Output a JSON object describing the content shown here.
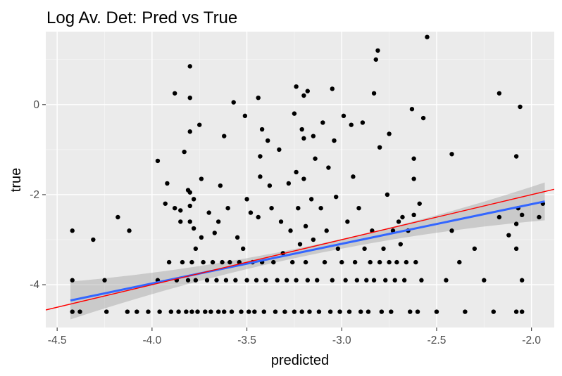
{
  "chart_data": {
    "type": "scatter",
    "title": "Log Av. Det: Pred vs True",
    "xlabel": "predicted",
    "ylabel": "true",
    "xlim": [
      -4.56,
      -1.88
    ],
    "ylim": [
      -4.95,
      1.62
    ],
    "xticks": [
      -4.5,
      -4.0,
      -3.5,
      -3.0,
      -2.5,
      -2.0
    ],
    "xtick_labels": [
      "-4.5",
      "-4.0",
      "-3.5",
      "-3.0",
      "-2.5",
      "-2.0"
    ],
    "yticks": [
      -4,
      -2,
      0
    ],
    "ytick_labels": [
      "-4",
      "-2",
      "0"
    ],
    "grid": true,
    "background": "#ebebeb",
    "point_color": "#000000",
    "identity_line": {
      "slope": 1,
      "intercept": 0,
      "color": "#ff0000"
    },
    "regression_line": {
      "x": [
        -4.43,
        -1.93
      ],
      "y": [
        -4.35,
        -2.15
      ],
      "color": "#3366ff",
      "band_color": "#999999"
    },
    "points": [
      [
        -4.42,
        -2.8
      ],
      [
        -4.42,
        -3.9
      ],
      [
        -4.42,
        -4.6
      ],
      [
        -4.38,
        -4.6
      ],
      [
        -4.31,
        -3.0
      ],
      [
        -4.25,
        -3.9
      ],
      [
        -4.24,
        -4.6
      ],
      [
        -4.18,
        -2.5
      ],
      [
        -4.13,
        -4.6
      ],
      [
        -4.12,
        -2.8
      ],
      [
        -4.08,
        -4.6
      ],
      [
        -4.02,
        -4.6
      ],
      [
        -3.97,
        -1.25
      ],
      [
        -3.97,
        -3.9
      ],
      [
        -3.96,
        -4.6
      ],
      [
        -3.93,
        -2.2
      ],
      [
        -3.92,
        -1.75
      ],
      [
        -3.91,
        -3.5
      ],
      [
        -3.9,
        -4.6
      ],
      [
        -3.88,
        0.25
      ],
      [
        -3.88,
        -2.3
      ],
      [
        -3.87,
        -3.9
      ],
      [
        -3.86,
        -4.6
      ],
      [
        -3.85,
        -2.6
      ],
      [
        -3.85,
        -2.35
      ],
      [
        -3.84,
        -3.5
      ],
      [
        -3.83,
        -1.05
      ],
      [
        -3.82,
        -4.6
      ],
      [
        -3.81,
        -1.9
      ],
      [
        -3.81,
        -3.9
      ],
      [
        -3.8,
        0.85
      ],
      [
        -3.8,
        0.15
      ],
      [
        -3.8,
        -0.6
      ],
      [
        -3.8,
        -1.95
      ],
      [
        -3.8,
        -2.25
      ],
      [
        -3.8,
        -2.6
      ],
      [
        -3.79,
        -3.5
      ],
      [
        -3.79,
        -4.6
      ],
      [
        -3.78,
        -2.1
      ],
      [
        -3.78,
        -2.75
      ],
      [
        -3.77,
        -3.2
      ],
      [
        -3.77,
        -3.9
      ],
      [
        -3.76,
        -4.6
      ],
      [
        -3.75,
        -0.45
      ],
      [
        -3.74,
        -1.65
      ],
      [
        -3.74,
        -2.95
      ],
      [
        -3.73,
        -3.5
      ],
      [
        -3.72,
        -4.6
      ],
      [
        -3.71,
        -3.9
      ],
      [
        -3.7,
        -2.4
      ],
      [
        -3.69,
        -4.6
      ],
      [
        -3.68,
        -3.5
      ],
      [
        -3.67,
        -2.85
      ],
      [
        -3.66,
        -3.9
      ],
      [
        -3.65,
        -4.6
      ],
      [
        -3.65,
        -2.6
      ],
      [
        -3.64,
        -1.8
      ],
      [
        -3.63,
        -3.5
      ],
      [
        -3.62,
        -0.7
      ],
      [
        -3.62,
        -4.6
      ],
      [
        -3.61,
        -3.9
      ],
      [
        -3.6,
        -2.3
      ],
      [
        -3.59,
        -3.5
      ],
      [
        -3.58,
        -4.6
      ],
      [
        -3.57,
        0.05
      ],
      [
        -3.56,
        -3.9
      ],
      [
        -3.55,
        -2.95
      ],
      [
        -3.54,
        -3.5
      ],
      [
        -3.53,
        -4.6
      ],
      [
        -3.52,
        -3.2
      ],
      [
        -3.51,
        -0.25
      ],
      [
        -3.5,
        -2.1
      ],
      [
        -3.5,
        -3.9
      ],
      [
        -3.49,
        -4.6
      ],
      [
        -3.48,
        -2.4
      ],
      [
        -3.47,
        -3.5
      ],
      [
        -3.46,
        -4.6
      ],
      [
        -3.45,
        -3.9
      ],
      [
        -3.44,
        0.15
      ],
      [
        -3.44,
        -2.5
      ],
      [
        -3.43,
        -1.6
      ],
      [
        -3.43,
        -1.15
      ],
      [
        -3.42,
        -0.55
      ],
      [
        -3.42,
        -3.5
      ],
      [
        -3.41,
        -4.6
      ],
      [
        -3.4,
        -3.9
      ],
      [
        -3.39,
        -0.8
      ],
      [
        -3.38,
        -1.8
      ],
      [
        -3.37,
        -2.3
      ],
      [
        -3.36,
        -3.5
      ],
      [
        -3.35,
        -4.6
      ],
      [
        -3.34,
        -3.9
      ],
      [
        -3.33,
        -1.0
      ],
      [
        -3.32,
        -2.6
      ],
      [
        -3.31,
        -3.3
      ],
      [
        -3.3,
        -4.6
      ],
      [
        -3.29,
        -3.9
      ],
      [
        -3.28,
        -1.75
      ],
      [
        -3.27,
        -2.8
      ],
      [
        -3.26,
        -3.5
      ],
      [
        -3.25,
        -0.2
      ],
      [
        -3.25,
        -4.6
      ],
      [
        -3.24,
        0.4
      ],
      [
        -3.24,
        -1.5
      ],
      [
        -3.24,
        -3.9
      ],
      [
        -3.23,
        -2.3
      ],
      [
        -3.22,
        -3.1
      ],
      [
        -3.21,
        -0.55
      ],
      [
        -3.21,
        -4.6
      ],
      [
        -3.2,
        0.2
      ],
      [
        -3.2,
        -0.75
      ],
      [
        -3.2,
        -1.65
      ],
      [
        -3.19,
        -2.7
      ],
      [
        -3.19,
        -3.5
      ],
      [
        -3.18,
        -3.9
      ],
      [
        -3.18,
        0.3
      ],
      [
        -3.17,
        -4.6
      ],
      [
        -3.16,
        -2.1
      ],
      [
        -3.15,
        -0.7
      ],
      [
        -3.15,
        -3.0
      ],
      [
        -3.14,
        -1.2
      ],
      [
        -3.13,
        -3.9
      ],
      [
        -3.12,
        -4.6
      ],
      [
        -3.11,
        -2.3
      ],
      [
        -3.1,
        -0.4
      ],
      [
        -3.09,
        -3.5
      ],
      [
        -3.08,
        -2.8
      ],
      [
        -3.07,
        -1.4
      ],
      [
        -3.06,
        -4.6
      ],
      [
        -3.05,
        0.35
      ],
      [
        -3.05,
        -3.9
      ],
      [
        -3.04,
        -0.8
      ],
      [
        -3.03,
        -2.05
      ],
      [
        -3.02,
        -3.2
      ],
      [
        -3.01,
        -4.6
      ],
      [
        -3.0,
        -3.5
      ],
      [
        -2.99,
        -0.25
      ],
      [
        -2.98,
        -3.9
      ],
      [
        -2.97,
        -2.6
      ],
      [
        -2.96,
        -4.6
      ],
      [
        -2.95,
        -0.45
      ],
      [
        -2.94,
        -1.6
      ],
      [
        -2.93,
        -3.5
      ],
      [
        -2.92,
        -3.9
      ],
      [
        -2.91,
        -2.3
      ],
      [
        -2.9,
        -4.6
      ],
      [
        -2.89,
        -0.4
      ],
      [
        -2.88,
        -3.2
      ],
      [
        -2.87,
        -3.9
      ],
      [
        -2.86,
        -4.6
      ],
      [
        -2.85,
        -3.5
      ],
      [
        -2.84,
        -2.8
      ],
      [
        -2.83,
        0.25
      ],
      [
        -2.83,
        -3.9
      ],
      [
        -2.82,
        1.0
      ],
      [
        -2.81,
        1.2
      ],
      [
        -2.8,
        -0.95
      ],
      [
        -2.8,
        -3.5
      ],
      [
        -2.79,
        -4.6
      ],
      [
        -2.78,
        -3.2
      ],
      [
        -2.77,
        -3.9
      ],
      [
        -2.76,
        -2.0
      ],
      [
        -2.75,
        -3.5
      ],
      [
        -2.75,
        -0.65
      ],
      [
        -2.74,
        -4.6
      ],
      [
        -2.73,
        -2.8
      ],
      [
        -2.72,
        -3.9
      ],
      [
        -2.71,
        -3.5
      ],
      [
        -2.7,
        -2.6
      ],
      [
        -2.69,
        -3.1
      ],
      [
        -2.68,
        -2.5
      ],
      [
        -2.67,
        -3.9
      ],
      [
        -2.66,
        -3.5
      ],
      [
        -2.65,
        -2.8
      ],
      [
        -2.64,
        -4.6
      ],
      [
        -2.63,
        -0.1
      ],
      [
        -2.62,
        -1.2
      ],
      [
        -2.62,
        -1.65
      ],
      [
        -2.62,
        -2.45
      ],
      [
        -2.61,
        -3.5
      ],
      [
        -2.6,
        -4.6
      ],
      [
        -2.59,
        -2.2
      ],
      [
        -2.58,
        -3.9
      ],
      [
        -2.57,
        -0.3
      ],
      [
        -2.55,
        1.5
      ],
      [
        -2.5,
        -4.6
      ],
      [
        -2.45,
        -3.9
      ],
      [
        -2.42,
        -1.1
      ],
      [
        -2.42,
        -2.8
      ],
      [
        -2.38,
        -3.5
      ],
      [
        -2.35,
        -4.6
      ],
      [
        -2.3,
        -3.2
      ],
      [
        -2.25,
        -3.9
      ],
      [
        -2.2,
        -4.6
      ],
      [
        -2.17,
        0.25
      ],
      [
        -2.17,
        -2.5
      ],
      [
        -2.12,
        -2.9
      ],
      [
        -2.08,
        -1.15
      ],
      [
        -2.08,
        -2.65
      ],
      [
        -2.08,
        -3.2
      ],
      [
        -2.08,
        -4.6
      ],
      [
        -2.07,
        -2.3
      ],
      [
        -2.06,
        -0.05
      ],
      [
        -2.05,
        -3.9
      ],
      [
        -2.05,
        -4.6
      ],
      [
        -2.05,
        -2.45
      ],
      [
        -1.96,
        -2.5
      ],
      [
        -1.94,
        -2.2
      ]
    ]
  }
}
